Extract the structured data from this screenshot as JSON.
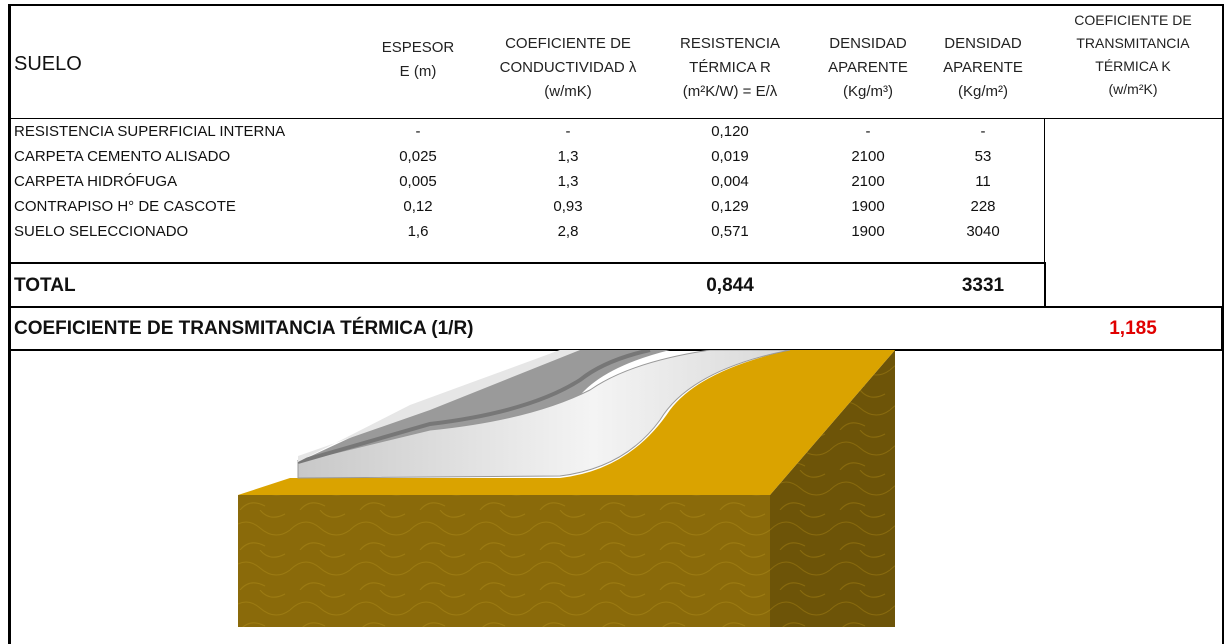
{
  "header": {
    "columns": [
      [
        "SUELO"
      ],
      [
        "ESPESOR",
        "E (m)"
      ],
      [
        "COEFICIENTE DE",
        "CONDUCTIVIDAD λ",
        "(w/mK)"
      ],
      [
        "RESISTENCIA",
        "TÉRMICA R",
        "(m²K/W) = E/λ"
      ],
      [
        "DENSIDAD",
        "APARENTE",
        "(Kg/m³)"
      ],
      [
        "DENSIDAD",
        "APARENTE",
        "(Kg/m²)"
      ],
      [
        "COEFICIENTE DE",
        "TRANSMITANCIA",
        "TÉRMICA K",
        "(w/m²K)"
      ]
    ]
  },
  "rows": [
    [
      "RESISTENCIA SUPERFICIAL INTERNA",
      "-",
      "-",
      "0,120",
      "-",
      "-"
    ],
    [
      "CARPETA CEMENTO ALISADO",
      "0,025",
      "1,3",
      "0,019",
      "2100",
      "53"
    ],
    [
      "CARPETA HIDRÓFUGA",
      "0,005",
      "1,3",
      "0,004",
      "2100",
      "11"
    ],
    [
      "CONTRAPISO H° DE CASCOTE",
      "0,12",
      "0,93",
      "0,129",
      "1900",
      "228"
    ],
    [
      "SUELO SELECCIONADO",
      "1,6",
      "2,8",
      "0,571",
      "1900",
      "3040"
    ]
  ],
  "total": {
    "label": "TOTAL",
    "resistance": "0,844",
    "density": "3331"
  },
  "coefficient": {
    "label": "COEFICIENTE DE TRANSMITANCIA TÉRMICA (1/R)",
    "value": "1,185"
  }
}
